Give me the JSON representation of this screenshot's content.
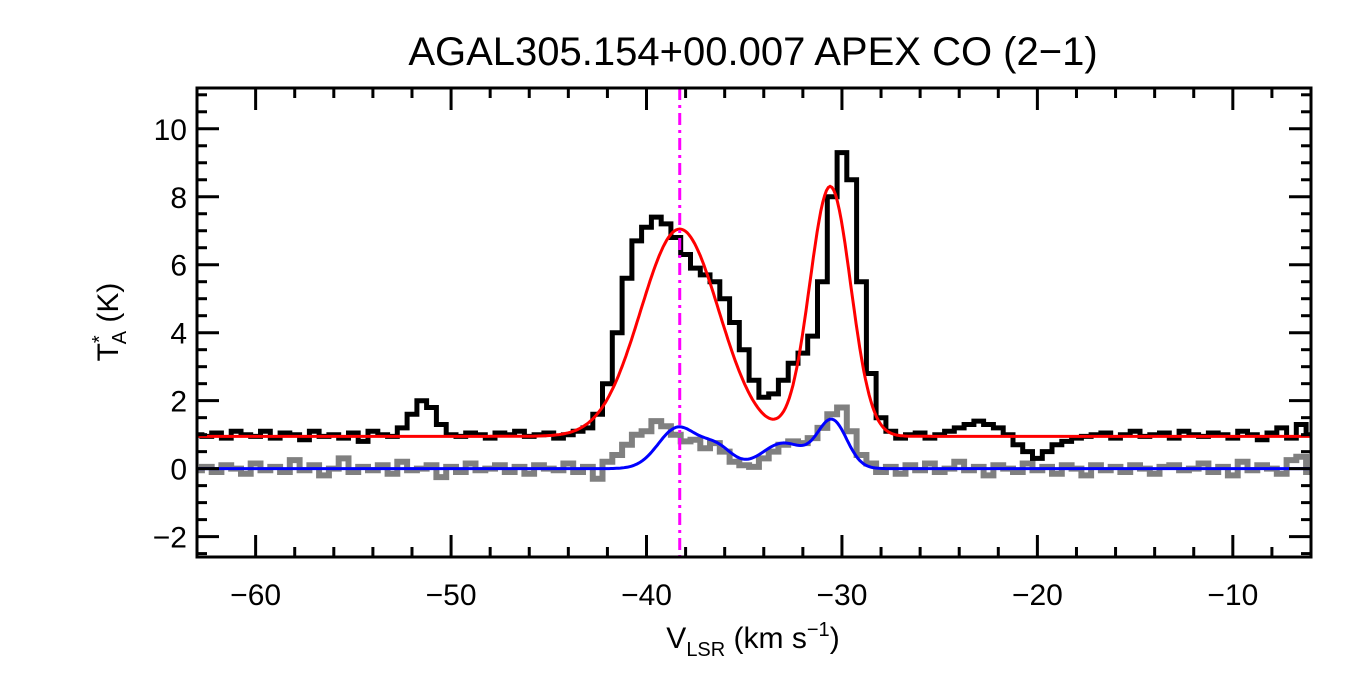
{
  "chart_data": {
    "type": "line",
    "title": "AGAL305.154+00.007  APEX CO (2−1)",
    "xlabel": {
      "main": "V",
      "sub": "LSR",
      "rest": " (km s",
      "sup": "−1",
      "end": ")"
    },
    "ylabel": {
      "main": "T",
      "sup": "*",
      "sub": "A",
      "rest": " (K)"
    },
    "xlim": [
      -63,
      -6
    ],
    "ylim": [
      -2.6,
      11.2
    ],
    "x_ticks": [
      {
        "value": -60,
        "label": "−60"
      },
      {
        "value": -50,
        "label": "−50"
      },
      {
        "value": -40,
        "label": "−40"
      },
      {
        "value": -30,
        "label": "−30"
      },
      {
        "value": -20,
        "label": "−20"
      },
      {
        "value": -10,
        "label": "−10"
      }
    ],
    "y_ticks": [
      {
        "value": -2,
        "label": "−2"
      },
      {
        "value": 0,
        "label": "0"
      },
      {
        "value": 2,
        "label": "2"
      },
      {
        "value": 4,
        "label": "4"
      },
      {
        "value": 6,
        "label": "6"
      },
      {
        "value": 8,
        "label": "8"
      },
      {
        "value": 10,
        "label": "10"
      }
    ],
    "vline": {
      "x": -38.3,
      "color": "#ff00ff",
      "style": "dash-dot"
    },
    "series": [
      {
        "style": "step",
        "color": "#808080",
        "width": 6,
        "x": [
          -63,
          -62.5,
          -62,
          -61.5,
          -61,
          -60.5,
          -60,
          -59.5,
          -59,
          -58.5,
          -58,
          -57.5,
          -57,
          -56.5,
          -56,
          -55.5,
          -55,
          -54.5,
          -54,
          -53.5,
          -53,
          -52.5,
          -52,
          -51.5,
          -51,
          -50.5,
          -50,
          -49.5,
          -49,
          -48.5,
          -48,
          -47.5,
          -47,
          -46.5,
          -46,
          -45.5,
          -45,
          -44.5,
          -44,
          -43.5,
          -43,
          -42.5,
          -42,
          -41.5,
          -41,
          -40.5,
          -40,
          -39.5,
          -39,
          -38.5,
          -38,
          -37.5,
          -37,
          -36.5,
          -36,
          -35.5,
          -35,
          -34.5,
          -34,
          -33.5,
          -33,
          -32.5,
          -32,
          -31.5,
          -31,
          -30.5,
          -30,
          -29.5,
          -29,
          -28.5,
          -28,
          -27.5,
          -27,
          -26.5,
          -26,
          -25.5,
          -25,
          -24.5,
          -24,
          -23.5,
          -23,
          -22.5,
          -22,
          -21.5,
          -21,
          -20.5,
          -20,
          -19.5,
          -19,
          -18.5,
          -18,
          -17.5,
          -17,
          -16.5,
          -16,
          -15.5,
          -15,
          -14.5,
          -14,
          -13.5,
          -13,
          -12.5,
          -12,
          -11.5,
          -11,
          -10.5,
          -10,
          -9.5,
          -9,
          -8.5,
          -8,
          -7.5,
          -7,
          -6.5,
          -6
        ],
        "y": [
          -0.05,
          0.05,
          -0.1,
          0.1,
          0,
          -0.15,
          0.15,
          -0.05,
          0.05,
          -0.1,
          0.25,
          -0.05,
          0.1,
          -0.2,
          0,
          0.3,
          -0.1,
          0.05,
          -0.05,
          0.1,
          -0.15,
          0.2,
          -0.05,
          0,
          0.1,
          -0.25,
          0.05,
          -0.1,
          0.15,
          -0.05,
          0,
          0.1,
          -0.1,
          0.05,
          -0.15,
          0.1,
          0,
          -0.05,
          0.15,
          -0.1,
          0.05,
          -0.3,
          0.2,
          0.4,
          0.7,
          1.0,
          1.1,
          1.4,
          1.25,
          1.0,
          0.8,
          0.85,
          0.6,
          0.75,
          0.5,
          0.2,
          0.1,
          0.05,
          0.3,
          0.5,
          0.7,
          0.8,
          0.75,
          0.9,
          1.2,
          1.6,
          1.8,
          1.1,
          0.4,
          0.15,
          -0.1,
          0.05,
          -0.15,
          0.1,
          -0.05,
          0.15,
          -0.1,
          0,
          0.2,
          -0.05,
          0.05,
          -0.2,
          0.1,
          0,
          -0.1,
          0.15,
          -0.05,
          0.05,
          -0.15,
          0.1,
          0,
          -0.2,
          0.1,
          -0.05,
          0.05,
          -0.1,
          0.1,
          0,
          -0.15,
          0.05,
          0.1,
          -0.05,
          0,
          0.15,
          -0.1,
          0.05,
          -0.2,
          0.2,
          -0.05,
          0.1,
          0,
          -0.15,
          0.25,
          0.35,
          -0.1
        ]
      },
      {
        "style": "step",
        "color": "#000000",
        "width": 5,
        "x": [
          -63,
          -62.5,
          -62,
          -61.5,
          -61,
          -60.5,
          -60,
          -59.5,
          -59,
          -58.5,
          -58,
          -57.5,
          -57,
          -56.5,
          -56,
          -55.5,
          -55,
          -54.5,
          -54,
          -53.5,
          -53,
          -52.5,
          -52,
          -51.5,
          -51,
          -50.5,
          -50,
          -49.5,
          -49,
          -48.5,
          -48,
          -47.5,
          -47,
          -46.5,
          -46,
          -45.5,
          -45,
          -44.5,
          -44,
          -43.5,
          -43,
          -42.5,
          -42,
          -41.5,
          -41,
          -40.5,
          -40,
          -39.5,
          -39,
          -38.5,
          -38,
          -37.5,
          -37,
          -36.5,
          -36,
          -35.5,
          -35,
          -34.5,
          -34,
          -33.5,
          -33,
          -32.5,
          -32,
          -31.5,
          -31,
          -30.5,
          -30,
          -29.5,
          -29,
          -28.5,
          -28,
          -27.5,
          -27,
          -26.5,
          -26,
          -25.5,
          -25,
          -24.5,
          -24,
          -23.5,
          -23,
          -22.5,
          -22,
          -21.5,
          -21,
          -20.5,
          -20,
          -19.5,
          -19,
          -18.5,
          -18,
          -17.5,
          -17,
          -16.5,
          -16,
          -15.5,
          -15,
          -14.5,
          -14,
          -13.5,
          -13,
          -12.5,
          -12,
          -11.5,
          -11,
          -10.5,
          -10,
          -9.5,
          -9,
          -8.5,
          -8,
          -7.5,
          -7,
          -6.5,
          -6
        ],
        "y": [
          1.0,
          0.95,
          1.05,
          0.9,
          1.1,
          1.0,
          0.95,
          1.1,
          0.9,
          1.05,
          1.0,
          0.85,
          1.1,
          0.95,
          1.0,
          0.9,
          1.05,
          0.8,
          1.1,
          1.0,
          0.95,
          1.2,
          1.6,
          2.0,
          1.8,
          1.3,
          1.0,
          0.95,
          1.05,
          1.0,
          0.9,
          1.05,
          1.0,
          1.1,
          0.95,
          1.0,
          1.05,
          0.9,
          1.0,
          1.1,
          1.2,
          1.6,
          2.5,
          4.0,
          5.6,
          6.7,
          7.1,
          7.4,
          7.2,
          6.8,
          6.3,
          5.9,
          5.7,
          5.5,
          5.0,
          4.3,
          3.5,
          2.6,
          2.1,
          2.2,
          2.6,
          3.1,
          3.4,
          3.9,
          5.5,
          8.0,
          9.3,
          8.5,
          5.5,
          2.8,
          1.5,
          1.1,
          0.9,
          1.0,
          1.05,
          0.9,
          1.0,
          1.1,
          1.2,
          1.3,
          1.4,
          1.3,
          1.2,
          1.0,
          0.7,
          0.5,
          0.3,
          0.5,
          0.7,
          0.8,
          0.9,
          0.95,
          1.0,
          1.05,
          0.9,
          1.0,
          1.1,
          0.95,
          1.0,
          1.05,
          0.9,
          1.1,
          1.0,
          0.95,
          1.05,
          1.0,
          0.9,
          1.1,
          1.0,
          0.85,
          1.05,
          1.2,
          0.9,
          1.3,
          1.0
        ]
      },
      {
        "style": "smooth",
        "color": "#ff0000",
        "width": 3,
        "baseline": 0.95,
        "components": [
          {
            "amplitude": 6.1,
            "center": -38.3,
            "sigma": 2.0
          },
          {
            "amplitude": 7.35,
            "center": -30.6,
            "sigma": 1.05
          }
        ]
      },
      {
        "style": "smooth",
        "color": "#0000ff",
        "width": 3,
        "baseline": 0.0,
        "components": [
          {
            "amplitude": 1.2,
            "center": -38.4,
            "sigma": 1.0
          },
          {
            "amplitude": 0.6,
            "center": -36.4,
            "sigma": 0.8
          },
          {
            "amplitude": 0.75,
            "center": -33.0,
            "sigma": 1.1
          },
          {
            "amplitude": 1.4,
            "center": -30.5,
            "sigma": 0.75
          }
        ]
      }
    ],
    "grid": false,
    "legend": "none"
  }
}
